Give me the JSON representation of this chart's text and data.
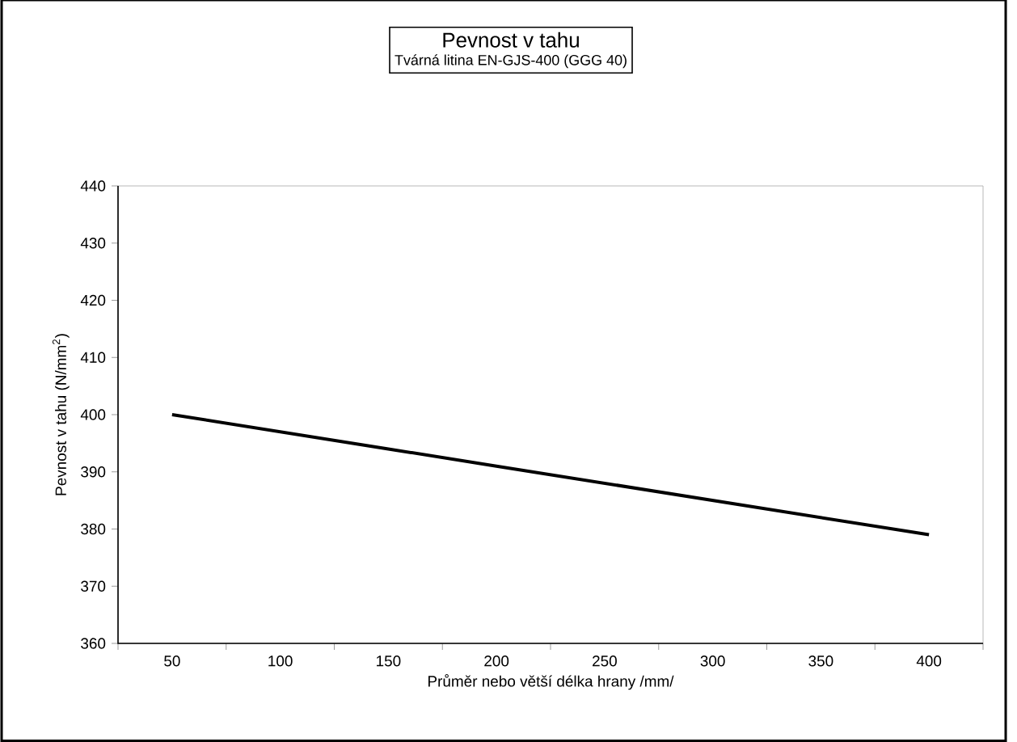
{
  "chart_data": {
    "type": "line",
    "title": "Pevnost v tahu",
    "subtitle": "Tvárná litina EN-GJS-400 (GGG 40)",
    "xlabel": "Průměr nebo větší délka hrany /mm/",
    "ylabel": "Pevnost v tahu (N/mm$^{2}$)",
    "categories": [
      "50",
      "100",
      "150",
      "200",
      "250",
      "300",
      "350",
      "400"
    ],
    "series": [
      {
        "color": "#000000",
        "values": [
          400,
          397,
          394,
          391,
          388,
          385,
          382,
          379
        ]
      }
    ],
    "ylim": [
      360,
      440
    ],
    "yticks": [
      360,
      370,
      380,
      390,
      400,
      410,
      420,
      430,
      440
    ],
    "grid": false,
    "marker": "none",
    "line_style": "solid"
  }
}
